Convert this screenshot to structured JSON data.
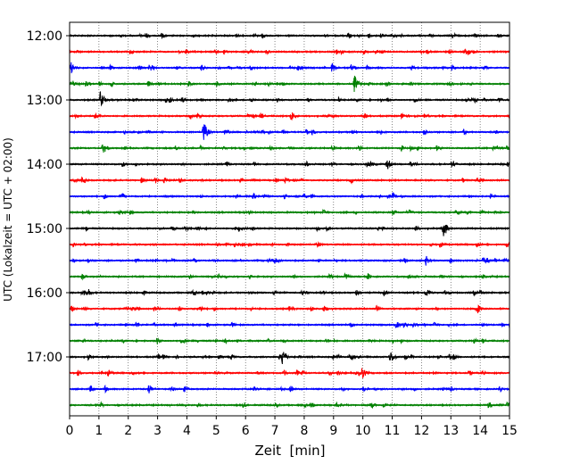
{
  "chart_data": {
    "type": "line",
    "title": "",
    "xlabel": "Zeit  [min]",
    "ylabel": "UTC (Lokalzeit = UTC + 02:00)",
    "xlim": [
      0,
      15
    ],
    "x_ticks": [
      "0",
      "1",
      "2",
      "3",
      "4",
      "5",
      "6",
      "7",
      "8",
      "9",
      "10",
      "11",
      "12",
      "13",
      "14",
      "15"
    ],
    "y_ticks": [
      "12:00",
      "13:00",
      "14:00",
      "15:00",
      "16:00",
      "17:00"
    ],
    "grid": "vertical dotted lines at each minute",
    "row_interval_minutes": 15,
    "trace_colors": [
      "#000000",
      "#ff0000",
      "#0000ff",
      "#008000"
    ],
    "traces": [
      {
        "start": "12:00",
        "color": "#000000",
        "bursts": []
      },
      {
        "start": "12:15",
        "color": "#ff0000",
        "bursts": []
      },
      {
        "start": "12:30",
        "color": "#0000ff",
        "bursts": [
          {
            "t": 0.05,
            "amp": 0.6
          },
          {
            "t": 8.95,
            "amp": 0.55
          }
        ]
      },
      {
        "start": "12:45",
        "color": "#008000",
        "bursts": [
          {
            "t": 0.1,
            "amp": 0.4
          },
          {
            "t": 9.7,
            "amp": 0.95
          }
        ]
      },
      {
        "start": "13:00",
        "color": "#000000",
        "bursts": [
          {
            "t": 1.05,
            "amp": 0.9
          }
        ]
      },
      {
        "start": "13:15",
        "color": "#ff0000",
        "bursts": [
          {
            "t": 7.55,
            "amp": 0.55
          }
        ]
      },
      {
        "start": "13:30",
        "color": "#0000ff",
        "bursts": [
          {
            "t": 4.55,
            "amp": 1.2
          }
        ]
      },
      {
        "start": "13:45",
        "color": "#008000",
        "bursts": [
          {
            "t": 1.15,
            "amp": 0.6
          }
        ]
      },
      {
        "start": "14:00",
        "color": "#000000",
        "bursts": [
          {
            "t": 10.85,
            "amp": 0.55
          }
        ]
      },
      {
        "start": "14:15",
        "color": "#ff0000",
        "bursts": []
      },
      {
        "start": "14:30",
        "color": "#0000ff",
        "bursts": []
      },
      {
        "start": "14:45",
        "color": "#008000",
        "bursts": []
      },
      {
        "start": "15:00",
        "color": "#000000",
        "bursts": [
          {
            "t": 12.75,
            "amp": 0.95
          }
        ]
      },
      {
        "start": "15:15",
        "color": "#ff0000",
        "bursts": []
      },
      {
        "start": "15:30",
        "color": "#0000ff",
        "bursts": [
          {
            "t": 12.15,
            "amp": 0.5
          },
          {
            "t": 14.1,
            "amp": 0.45
          }
        ]
      },
      {
        "start": "15:45",
        "color": "#008000",
        "bursts": []
      },
      {
        "start": "16:00",
        "color": "#000000",
        "bursts": [
          {
            "t": 0.5,
            "amp": 0.4
          },
          {
            "t": 12.2,
            "amp": 0.4
          }
        ]
      },
      {
        "start": "16:15",
        "color": "#ff0000",
        "bursts": [
          {
            "t": 13.9,
            "amp": 0.55
          }
        ]
      },
      {
        "start": "16:30",
        "color": "#0000ff",
        "bursts": []
      },
      {
        "start": "16:45",
        "color": "#008000",
        "bursts": []
      },
      {
        "start": "17:00",
        "color": "#000000",
        "bursts": [
          {
            "t": 7.25,
            "amp": 0.95
          },
          {
            "t": 10.95,
            "amp": 0.65
          }
        ]
      },
      {
        "start": "17:15",
        "color": "#ff0000",
        "bursts": [
          {
            "t": 9.95,
            "amp": 0.75
          }
        ]
      },
      {
        "start": "17:30",
        "color": "#0000ff",
        "bursts": [
          {
            "t": 2.7,
            "amp": 0.5
          }
        ]
      },
      {
        "start": "17:45",
        "color": "#008000",
        "bursts": []
      }
    ]
  }
}
